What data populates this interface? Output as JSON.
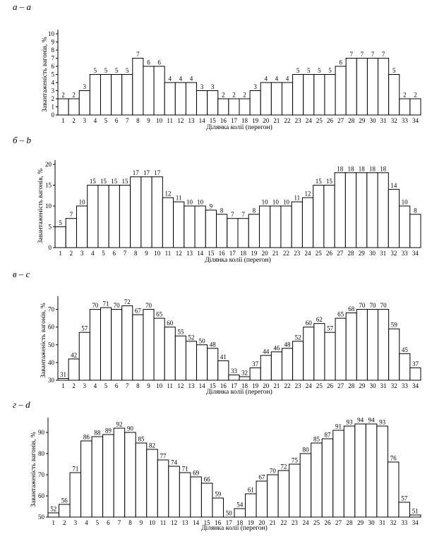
{
  "chart_data": [
    {
      "type": "bar",
      "panel_label": "а – a",
      "xlabel": "Ділянка колії (перегон)",
      "ylabel": "Завантаженість вагонів, %",
      "ylim": [
        0,
        10
      ],
      "yticks": [
        0,
        1,
        2,
        3,
        4,
        5,
        6,
        7,
        8,
        9,
        10
      ],
      "grid": false,
      "categories": [
        "1",
        "2",
        "3",
        "4",
        "5",
        "6",
        "7",
        "8",
        "9",
        "10",
        "11",
        "12",
        "13",
        "14",
        "15",
        "16",
        "17",
        "18",
        "19",
        "20",
        "21",
        "22",
        "23",
        "24",
        "25",
        "26",
        "27",
        "28",
        "29",
        "30",
        "31",
        "32",
        "33",
        "34"
      ],
      "values": [
        2,
        2,
        3,
        5,
        5,
        5,
        5,
        7,
        6,
        6,
        4,
        4,
        4,
        3,
        3,
        2,
        2,
        2,
        3,
        4,
        4,
        4,
        5,
        5,
        5,
        5,
        6,
        7,
        7,
        7,
        7,
        5,
        2,
        2
      ],
      "data_labels": [
        "2",
        "2",
        "3",
        "5",
        "5",
        "5",
        "5",
        "7",
        "6",
        "6",
        "4",
        "4",
        "4",
        "3",
        "3",
        "2",
        "2",
        "2",
        "3",
        "4",
        "4",
        "4",
        "5",
        "5",
        "5",
        "5",
        "6",
        "7",
        "7",
        "7",
        "7",
        "5",
        "2",
        "2"
      ]
    },
    {
      "type": "bar",
      "panel_label": "б – b",
      "xlabel": "Ділянка колії (перегон)",
      "ylabel": "Завантаженість вагонів, %",
      "ylim": [
        0,
        20
      ],
      "yticks": [
        0,
        5,
        10,
        15,
        20
      ],
      "grid": false,
      "categories": [
        "1",
        "2",
        "3",
        "4",
        "5",
        "6",
        "7",
        "8",
        "9",
        "10",
        "11",
        "12",
        "13",
        "14",
        "15",
        "16",
        "17",
        "18",
        "19",
        "20",
        "21",
        "22",
        "23",
        "24",
        "25",
        "26",
        "27",
        "28",
        "29",
        "30",
        "31",
        "32",
        "33",
        "34"
      ],
      "values": [
        5,
        7,
        10,
        15,
        15,
        15,
        15,
        17,
        17,
        17,
        12,
        11,
        10,
        10,
        9,
        8,
        7,
        7,
        8,
        10,
        10,
        10,
        11,
        12,
        15,
        15,
        18,
        18,
        18,
        18,
        18,
        14,
        10,
        8
      ],
      "data_labels": [
        "5",
        "7",
        "10",
        "15",
        "15",
        "15",
        "15",
        "17",
        "17",
        "17",
        "12",
        "11",
        "10",
        "10",
        "9",
        "8",
        "7",
        "7",
        "8",
        "10",
        "10",
        "10",
        "11",
        "12",
        "15",
        "15",
        "18",
        "18",
        "18",
        "18",
        "18",
        "14",
        "10",
        "8"
      ]
    },
    {
      "type": "bar",
      "panel_label": "в – c",
      "xlabel": "Ділянка колії (перегон)",
      "ylabel": "Завантаженість вагонів, %",
      "ylim": [
        30,
        75
      ],
      "yticks": [
        30,
        40,
        50,
        60,
        70
      ],
      "grid": false,
      "categories": [
        "1",
        "2",
        "3",
        "4",
        "5",
        "6",
        "7",
        "8",
        "9",
        "10",
        "11",
        "12",
        "13",
        "14",
        "15",
        "16",
        "17",
        "18",
        "19",
        "20",
        "21",
        "22",
        "23",
        "24",
        "25",
        "26",
        "27",
        "28",
        "29",
        "30",
        "31",
        "32",
        "33",
        "34"
      ],
      "values": [
        31,
        42,
        57,
        70,
        71,
        70,
        72,
        67,
        70,
        65,
        60,
        55,
        52,
        50,
        48,
        41,
        33,
        32,
        37,
        44,
        46,
        48,
        52,
        60,
        62,
        57,
        65,
        68,
        70,
        70,
        70,
        59,
        45,
        37
      ],
      "data_labels": [
        "31",
        "42",
        "57",
        "70",
        "71",
        "70",
        "72",
        "67",
        "70",
        "65",
        "60",
        "55",
        "52",
        "50",
        "48",
        "41",
        "33",
        "32",
        "37",
        "44",
        "46",
        "48",
        "52",
        "60",
        "62",
        "57",
        "65",
        "68",
        "70",
        "70",
        "70",
        "59",
        "45",
        "37"
      ]
    },
    {
      "type": "bar",
      "panel_label": "г – d",
      "xlabel": "Ділянка колії (перегон)",
      "ylabel": "Завантаженість вагонів, %",
      "ylim": [
        50,
        95
      ],
      "yticks": [
        50,
        60,
        70,
        80,
        90
      ],
      "grid": false,
      "categories": [
        "1",
        "2",
        "3",
        "4",
        "5",
        "6",
        "7",
        "8",
        "9",
        "10",
        "11",
        "12",
        "13",
        "14",
        "15",
        "16",
        "17",
        "18",
        "19",
        "20",
        "21",
        "22",
        "23",
        "24",
        "25",
        "26",
        "27",
        "28",
        "29",
        "30",
        "31",
        "32",
        "33",
        "34"
      ],
      "values": [
        52,
        56,
        71,
        86,
        88,
        89,
        92,
        90,
        85,
        82,
        77,
        74,
        71,
        69,
        66,
        59,
        50,
        54,
        61,
        67,
        70,
        72,
        75,
        80,
        85,
        87,
        91,
        93,
        94,
        94,
        93,
        76,
        57,
        51
      ],
      "data_labels": [
        "52",
        "56",
        "71",
        "86",
        "88",
        "89",
        "92",
        "90",
        "85",
        "82",
        "77",
        "74",
        "71",
        "69",
        "66",
        "59",
        "50",
        "54",
        "61",
        "67",
        "70",
        "72",
        "75",
        "80",
        "85",
        "87",
        "91",
        "93",
        "94",
        "94",
        "93",
        "76",
        "57",
        "51"
      ]
    }
  ]
}
